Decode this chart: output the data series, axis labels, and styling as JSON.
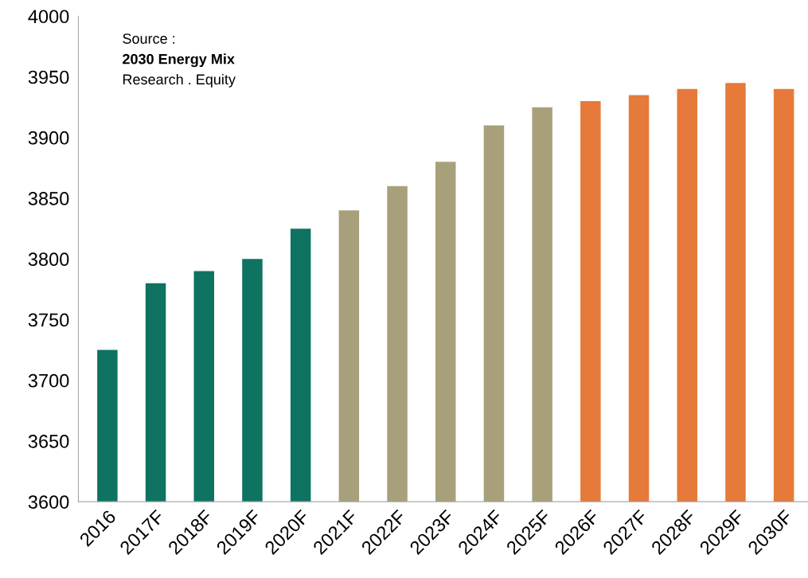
{
  "chart_data": {
    "type": "bar",
    "categories": [
      "2016",
      "2017F",
      "2018F",
      "2019F",
      "2020F",
      "2021F",
      "2022F",
      "2023F",
      "2024F",
      "2025F",
      "2026F",
      "2027F",
      "2028F",
      "2029F",
      "2030F"
    ],
    "values": [
      3725,
      3780,
      3790,
      3800,
      3825,
      3840,
      3860,
      3880,
      3910,
      3925,
      3930,
      3935,
      3940,
      3945,
      3940
    ],
    "colors": [
      "#0e7360",
      "#0e7360",
      "#0e7360",
      "#0e7360",
      "#0e7360",
      "#a8a07a",
      "#a8a07a",
      "#a8a07a",
      "#a8a07a",
      "#a8a07a",
      "#e57a3a",
      "#e57a3a",
      "#e57a3a",
      "#e57a3a",
      "#e57a3a"
    ],
    "ylim": [
      3600,
      4000
    ],
    "yticks": [
      3600,
      3650,
      3700,
      3750,
      3800,
      3850,
      3900,
      3950,
      4000
    ],
    "grid": false,
    "legend": false,
    "annotations": [
      "Source :",
      "2030 Energy Mix",
      "Research . Equity"
    ]
  }
}
